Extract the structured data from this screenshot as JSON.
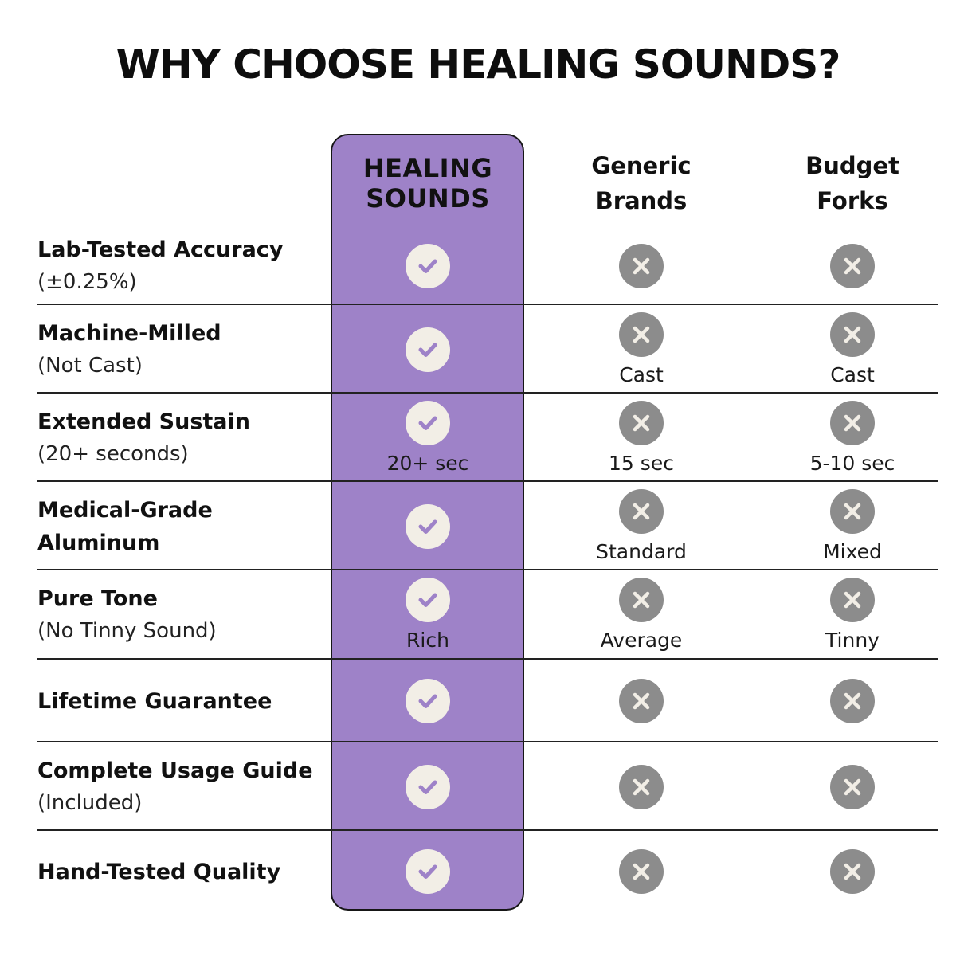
{
  "title": "WHY CHOOSE HEALING SOUNDS?",
  "colors": {
    "highlight": "#9e82c8",
    "check_bg": "#f2eee6",
    "cross_bg": "#8c8c8c"
  },
  "columns": [
    {
      "line1": "HEALING",
      "line2": "SOUNDS"
    },
    {
      "line1": "Generic",
      "line2": "Brands"
    },
    {
      "line1": "Budget",
      "line2": "Forks"
    }
  ],
  "rows": [
    {
      "label": "Lab-Tested Accuracy",
      "sub": "(±0.25%)",
      "cells": [
        {
          "icon": "check-icon",
          "note": ""
        },
        {
          "icon": "cross-icon",
          "note": ""
        },
        {
          "icon": "cross-icon",
          "note": ""
        }
      ]
    },
    {
      "label": "Machine-Milled",
      "sub": "(Not Cast)",
      "cells": [
        {
          "icon": "check-icon",
          "note": ""
        },
        {
          "icon": "cross-icon",
          "note": "Cast"
        },
        {
          "icon": "cross-icon",
          "note": "Cast"
        }
      ]
    },
    {
      "label": "Extended Sustain",
      "sub": "(20+ seconds)",
      "cells": [
        {
          "icon": "check-icon",
          "note": "20+ sec"
        },
        {
          "icon": "cross-icon",
          "note": "15 sec"
        },
        {
          "icon": "cross-icon",
          "note": "5-10 sec"
        }
      ]
    },
    {
      "label": "Medical-Grade",
      "label2": "Aluminum",
      "cells": [
        {
          "icon": "check-icon",
          "note": ""
        },
        {
          "icon": "cross-icon",
          "note": "Standard"
        },
        {
          "icon": "cross-icon",
          "note": "Mixed"
        }
      ]
    },
    {
      "label": "Pure Tone",
      "sub": "(No Tinny Sound)",
      "cells": [
        {
          "icon": "check-icon",
          "note": "Rich"
        },
        {
          "icon": "cross-icon",
          "note": "Average"
        },
        {
          "icon": "cross-icon",
          "note": "Tinny"
        }
      ]
    },
    {
      "label": "Lifetime Guarantee",
      "cells": [
        {
          "icon": "check-icon",
          "note": ""
        },
        {
          "icon": "cross-icon",
          "note": ""
        },
        {
          "icon": "cross-icon",
          "note": ""
        }
      ]
    },
    {
      "label": "Complete Usage Guide",
      "sub": "(Included)",
      "cells": [
        {
          "icon": "check-icon",
          "note": ""
        },
        {
          "icon": "cross-icon",
          "note": ""
        },
        {
          "icon": "cross-icon",
          "note": ""
        }
      ]
    },
    {
      "label": "Hand-Tested Quality",
      "cells": [
        {
          "icon": "check-icon",
          "note": ""
        },
        {
          "icon": "cross-icon",
          "note": ""
        },
        {
          "icon": "cross-icon",
          "note": ""
        }
      ]
    }
  ]
}
